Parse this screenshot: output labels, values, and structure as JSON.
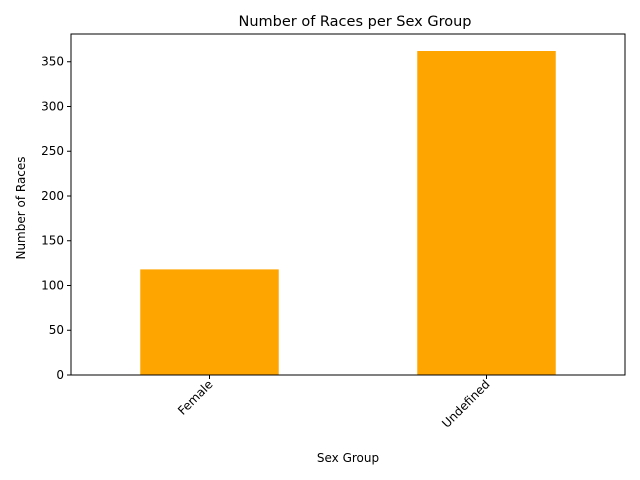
{
  "chart_data": {
    "type": "bar",
    "title": "Number of Races per Sex Group",
    "xlabel": "Sex Group",
    "ylabel": "Number of Races",
    "categories": [
      "Female",
      "Undefined"
    ],
    "values": [
      118,
      362
    ],
    "ylim": [
      0,
      381
    ],
    "yticks": [
      0,
      50,
      100,
      150,
      200,
      250,
      300,
      350
    ],
    "bar_color": "#ffa500",
    "grid": false,
    "legend": "none",
    "xtick_rotation_deg": 45
  }
}
